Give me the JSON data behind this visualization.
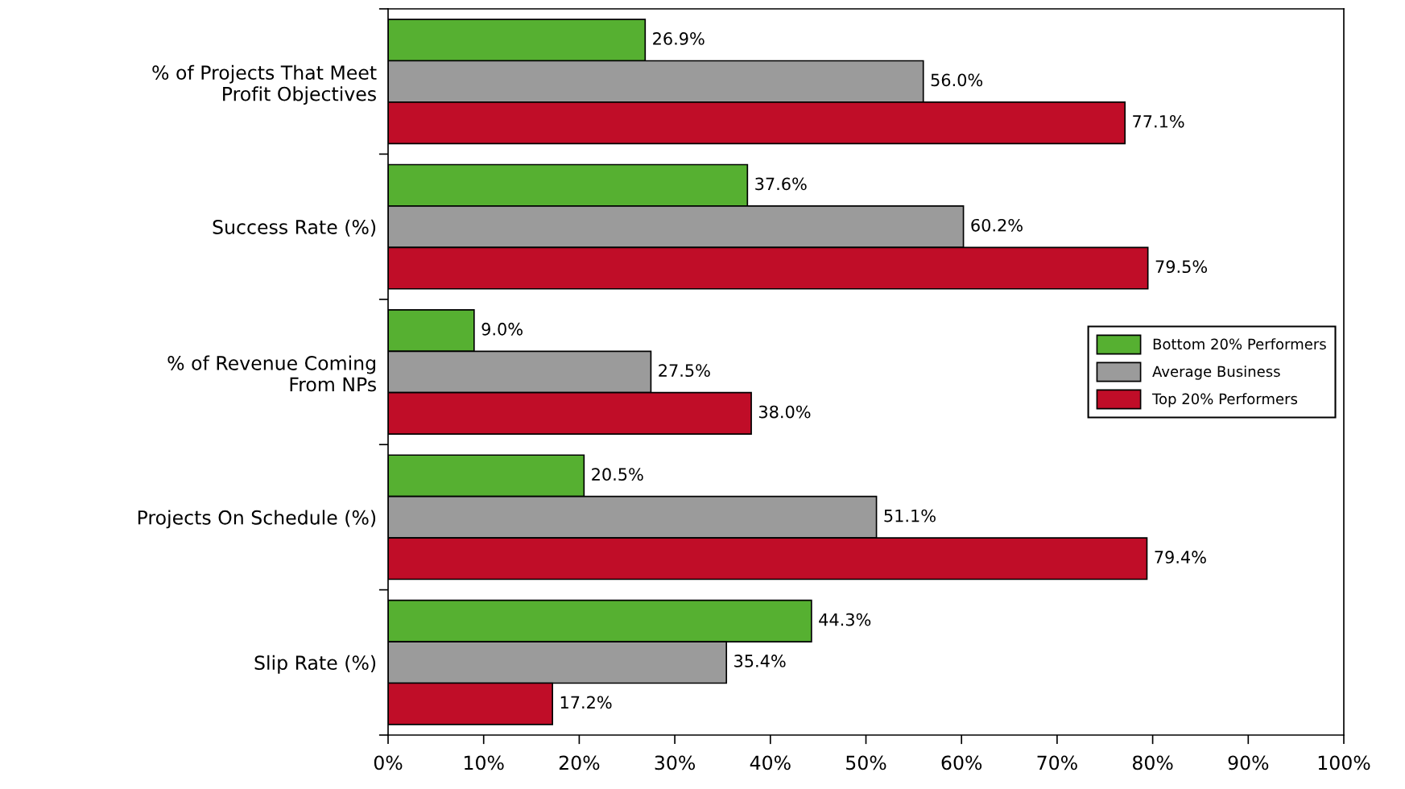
{
  "chart_data": {
    "type": "bar",
    "orientation": "horizontal",
    "categories": [
      "% of Projects That Meet\nProfit Objectives",
      "Success Rate (%)",
      "% of Revenue Coming\nFrom NPs",
      "Projects On Schedule (%)",
      "Slip Rate (%)"
    ],
    "series": [
      {
        "name": "Bottom 20% Performers",
        "color": "#56b031",
        "values": [
          26.9,
          37.6,
          9.0,
          20.5,
          44.3
        ],
        "value_labels": [
          "26.9%",
          "37.6%",
          "9.0%",
          "20.5%",
          "44.3%"
        ]
      },
      {
        "name": "Average Business",
        "color": "#9b9b9b",
        "values": [
          56.0,
          60.2,
          27.5,
          51.1,
          35.4
        ],
        "value_labels": [
          "56.0%",
          "60.2%",
          "27.5%",
          "51.1%",
          "35.4%"
        ]
      },
      {
        "name": "Top 20% Performers",
        "color": "#c00d28",
        "values": [
          77.1,
          79.5,
          38.0,
          79.4,
          17.2
        ],
        "value_labels": [
          "77.1%",
          "79.5%",
          "38.0%",
          "79.4%",
          "17.2%"
        ]
      }
    ],
    "xlim": [
      0,
      100
    ],
    "xticks": [
      {
        "value": 0,
        "label": "0%"
      },
      {
        "value": 10,
        "label": "10%"
      },
      {
        "value": 20,
        "label": "20%"
      },
      {
        "value": 30,
        "label": "30%"
      },
      {
        "value": 40,
        "label": "40%"
      },
      {
        "value": 50,
        "label": "50%"
      },
      {
        "value": 60,
        "label": "60%"
      },
      {
        "value": 70,
        "label": "70%"
      },
      {
        "value": 80,
        "label": "80%"
      },
      {
        "value": 90,
        "label": "90%"
      },
      {
        "value": 100,
        "label": "100%"
      }
    ],
    "legend": "right"
  }
}
